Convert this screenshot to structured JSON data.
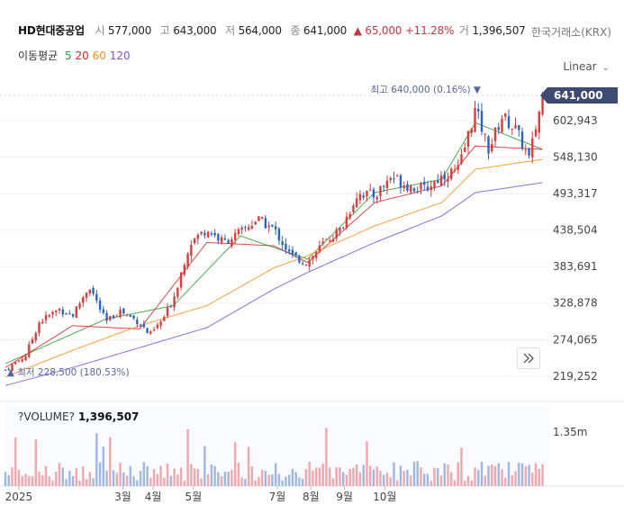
{
  "header": {
    "name": "HD현대중공업",
    "open_label": "시",
    "open": "577,000",
    "high_label": "고",
    "high": "643,000",
    "low_label": "저",
    "low": "564,000",
    "close_label": "종",
    "close": "641,000",
    "change_arrow": "▲",
    "change": "65,000",
    "change_pct": "+11.28%",
    "vol_label": "거",
    "volume": "1,396,507",
    "exchange": "한국거래소(KRX)"
  },
  "ma": {
    "title": "이동평균",
    "periods": [
      {
        "label": "5",
        "color": "#2ca02c"
      },
      {
        "label": "20",
        "color": "#d62728"
      },
      {
        "label": "60",
        "color": "#ff8c1a"
      },
      {
        "label": "120",
        "color": "#7b52d9"
      }
    ]
  },
  "scale_label": "Linear",
  "price_axis": {
    "labels": [
      "602,943",
      "548,130",
      "493,317",
      "438,504",
      "383,691",
      "328,878",
      "274,065",
      "219,252"
    ],
    "last_price_badge": "641,000"
  },
  "annotations": {
    "max_text": "최고 640,000 (0.16%) ▼",
    "min_text": "▲ 최저 228,500 (180.53%)"
  },
  "volume_panel": {
    "label": "?VOLUME?",
    "value": "1,396,507",
    "axis_label": "1.35m"
  },
  "time_axis": [
    "2025",
    "3월",
    "4월",
    "5월",
    "7월",
    "8월",
    "9월",
    "10월"
  ],
  "colors": {
    "up": "#e03a3a",
    "down": "#2b63c6",
    "badge": "#3d4a74",
    "annotation": "#5567a3"
  },
  "chart_data": {
    "type": "candlestick",
    "title": "HD현대중공업",
    "ylim": [
      200000,
      660000
    ],
    "series": [
      {
        "name": "price",
        "points": [
          [
            0,
            228500
          ],
          [
            0.6,
            250000
          ],
          [
            1.0,
            300000
          ],
          [
            1.6,
            320000
          ],
          [
            2.0,
            310000
          ],
          [
            2.5,
            355000
          ],
          [
            3.0,
            300000
          ],
          [
            3.4,
            318000
          ],
          [
            4.0,
            300000
          ],
          [
            4.3,
            280000
          ],
          [
            4.7,
            305000
          ],
          [
            5.0,
            335000
          ],
          [
            5.5,
            420000
          ],
          [
            6.0,
            440000
          ],
          [
            6.5,
            420000
          ],
          [
            7.0,
            435000
          ],
          [
            7.5,
            455000
          ],
          [
            8.0,
            440000
          ],
          [
            8.5,
            400000
          ],
          [
            9.0,
            390000
          ],
          [
            9.5,
            420000
          ],
          [
            10.0,
            440000
          ],
          [
            10.5,
            495000
          ],
          [
            11.0,
            490000
          ],
          [
            11.5,
            520000
          ],
          [
            12.0,
            505000
          ],
          [
            12.5,
            500000
          ],
          [
            13.0,
            520000
          ],
          [
            13.5,
            530000
          ],
          [
            14.0,
            620000
          ],
          [
            14.4,
            560000
          ],
          [
            14.8,
            610000
          ],
          [
            15.2,
            590000
          ],
          [
            15.6,
            545000
          ],
          [
            16.0,
            641000
          ]
        ]
      },
      {
        "name": "5",
        "points": [
          [
            0,
            238000
          ],
          [
            3,
            305000
          ],
          [
            5,
            325000
          ],
          [
            7,
            430000
          ],
          [
            9,
            395000
          ],
          [
            11,
            495000
          ],
          [
            13,
            515000
          ],
          [
            14,
            600000
          ],
          [
            16,
            560000
          ]
        ]
      },
      {
        "name": "20",
        "points": [
          [
            0,
            232000
          ],
          [
            2,
            295000
          ],
          [
            4,
            290000
          ],
          [
            6,
            420000
          ],
          [
            8,
            415000
          ],
          [
            9,
            390000
          ],
          [
            11,
            480000
          ],
          [
            13,
            505000
          ],
          [
            14,
            565000
          ],
          [
            16,
            560000
          ]
        ]
      },
      {
        "name": "60",
        "points": [
          [
            0,
            218000
          ],
          [
            2,
            258000
          ],
          [
            4,
            295000
          ],
          [
            6,
            325000
          ],
          [
            8,
            382000
          ],
          [
            9,
            400000
          ],
          [
            11,
            445000
          ],
          [
            13,
            480000
          ],
          [
            14,
            530000
          ],
          [
            16,
            545000
          ]
        ]
      },
      {
        "name": "120",
        "points": [
          [
            0,
            205000
          ],
          [
            2,
            232000
          ],
          [
            4,
            262000
          ],
          [
            6,
            292000
          ],
          [
            8,
            350000
          ],
          [
            9,
            375000
          ],
          [
            11,
            420000
          ],
          [
            13,
            460000
          ],
          [
            14,
            495000
          ],
          [
            16,
            510000
          ]
        ]
      }
    ],
    "x_labels": [
      "2025",
      "3월",
      "4월",
      "5월",
      "7월",
      "8월",
      "9월",
      "10월"
    ],
    "x_label_pos": [
      0.4,
      3.5,
      4.4,
      5.6,
      8.1,
      9.1,
      10.1,
      11.3
    ],
    "max_marker": {
      "x": 14.0,
      "y": 640000
    },
    "min_marker": {
      "x": 0.05,
      "y": 228500
    },
    "volume_axis_value": 1350000
  }
}
